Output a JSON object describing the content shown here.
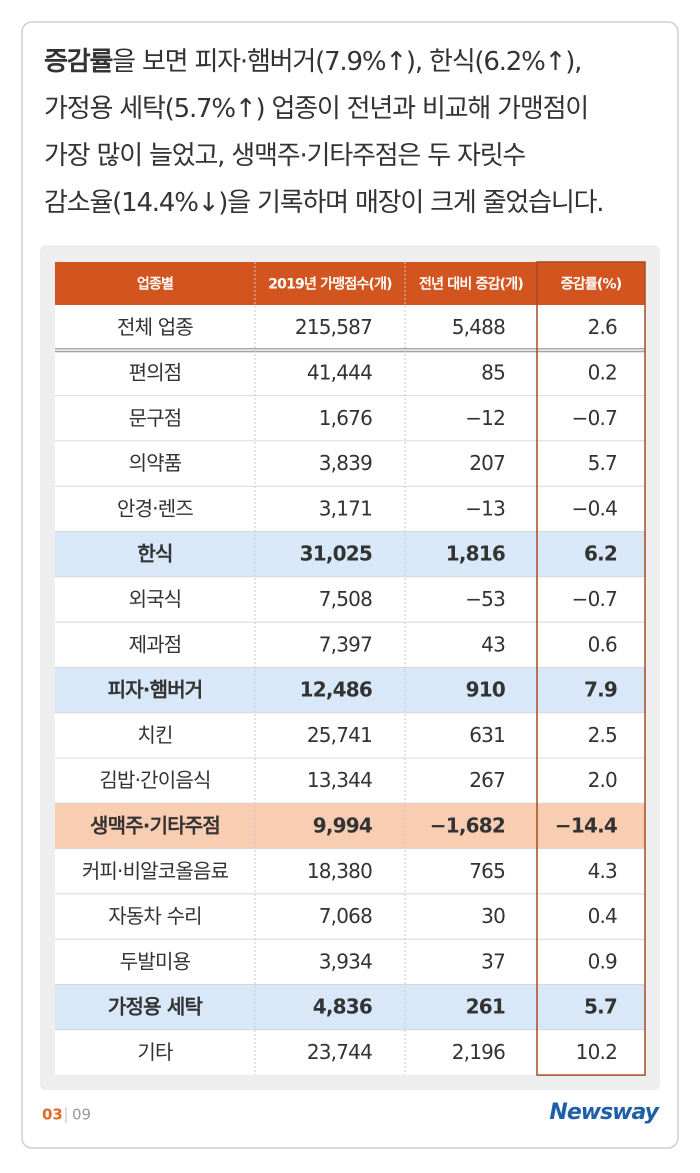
{
  "headline": {
    "emphasis": "증감률",
    "lines": [
      "을 보면 피자·햄버거(7.9%↑), 한식(6.2%↑),",
      "가정용 세탁(5.7%↑) 업종이 전년과 비교해 가맹점이",
      "가장 많이 늘었고, 생맥주·기타주점은 두 자릿수",
      "감소율(14.4%↓)을 기록하며 매장이 크게 줄었습니다."
    ]
  },
  "table": {
    "header": [
      "업종별",
      "2019년 가맹점수(개)",
      "전년 대비 증감(개)",
      "증감률(%)"
    ],
    "header_color": "#d2541e",
    "outline_color": "#a64a22",
    "rows": [
      {
        "cells": [
          "전체 업종",
          "215,587",
          "5,488",
          "2.6"
        ]
      },
      {
        "cells": [
          "편의점",
          "41,444",
          "85",
          "0.2"
        ]
      },
      {
        "cells": [
          "문구점",
          "1,676",
          "−12",
          "−0.7"
        ]
      },
      {
        "cells": [
          "의약품",
          "3,839",
          "207",
          "5.7"
        ]
      },
      {
        "cells": [
          "안경·렌즈",
          "3,171",
          "−13",
          "−0.4"
        ]
      },
      {
        "cells": [
          "한식",
          "31,025",
          "1,816",
          "6.2"
        ],
        "fill": "#d8e8f8"
      },
      {
        "cells": [
          "외국식",
          "7,508",
          "−53",
          "−0.7"
        ]
      },
      {
        "cells": [
          "제과점",
          "7,397",
          "43",
          "0.6"
        ]
      },
      {
        "cells": [
          "피자·햄버거",
          "12,486",
          "910",
          "7.9"
        ],
        "fill": "#d8e8f8"
      },
      {
        "cells": [
          "치킨",
          "25,741",
          "631",
          "2.5"
        ]
      },
      {
        "cells": [
          "김밥·간이음식",
          "13,344",
          "267",
          "2.0"
        ]
      },
      {
        "cells": [
          "생맥주·기타주점",
          "9,994",
          "−1,682",
          "−14.4"
        ],
        "fill": "#f9cdb2"
      },
      {
        "cells": [
          "커피·비알코올음료",
          "18,380",
          "765",
          "4.3"
        ]
      },
      {
        "cells": [
          "자동차 수리",
          "7,068",
          "30",
          "0.4"
        ]
      },
      {
        "cells": [
          "두발미용",
          "3,934",
          "37",
          "0.9"
        ]
      },
      {
        "cells": [
          "가정용 세탁",
          "4,836",
          "261",
          "5.7"
        ],
        "fill": "#d8e8f8"
      },
      {
        "cells": [
          "기타",
          "23,744",
          "2,196",
          "10.2"
        ]
      }
    ]
  },
  "footer": {
    "page": "03",
    "total": "09",
    "brand": "Newsway"
  }
}
